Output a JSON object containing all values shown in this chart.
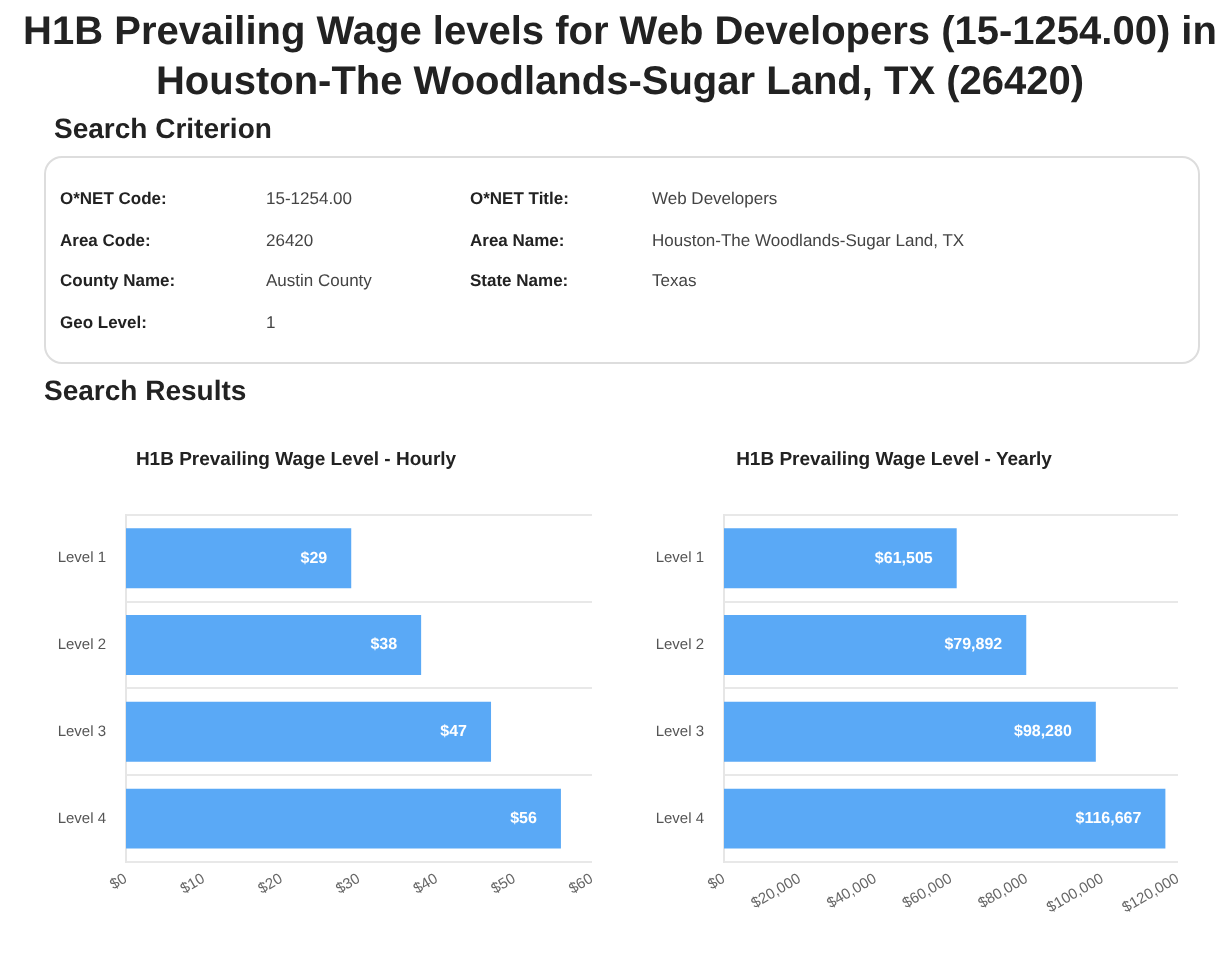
{
  "chart_data": [
    {
      "type": "other",
      "title": "H1B Prevailing Wage levels for Web Developers (15-1254.00) in Houston-The Woodlands-Sugar Land, TX (26420)",
      "subtitle": "Search Criterion",
      "annotations": [
        "O*NET Code:",
        "15-1254.00",
        "O*NET Title:",
        "Web Developers",
        "Area Code:",
        "26420",
        "Area Name:",
        "Houston-The Woodlands-Sugar Land, TX",
        "County Name:",
        "Austin County",
        "State Name:",
        "Texas",
        "Geo Level:",
        "1"
      ]
    },
    {
      "type": "other",
      "title": "Search Results"
    },
    {
      "type": "bar",
      "orientation": "horizontal",
      "title": "H1B Prevailing Wage Level - Hourly",
      "categories": [
        "Level 1",
        "Level 2",
        "Level 3",
        "Level 4"
      ],
      "values": [
        29,
        38,
        47,
        56
      ],
      "value_labels": [
        "$29",
        "$38",
        "$47",
        "$56"
      ],
      "color": "#5aa9f6",
      "xlim": [
        0,
        60
      ],
      "xticks": [
        {
          "value": 0,
          "label": "$0"
        },
        {
          "value": 10,
          "label": "$10"
        },
        {
          "value": 20,
          "label": "$20"
        },
        {
          "value": 30,
          "label": "$30"
        },
        {
          "value": 40,
          "label": "$40"
        },
        {
          "value": 50,
          "label": "$50"
        },
        {
          "value": 60,
          "label": "$60"
        }
      ],
      "grid": "y"
    },
    {
      "type": "bar",
      "orientation": "horizontal",
      "title": "H1B Prevailing Wage Level - Yearly",
      "categories": [
        "Level 1",
        "Level 2",
        "Level 3",
        "Level 4"
      ],
      "values": [
        61505,
        79892,
        98280,
        116667
      ],
      "value_labels": [
        "$61,505",
        "$79,892",
        "$98,280",
        "$116,667"
      ],
      "color": "#5aa9f6",
      "xlim": [
        0,
        120000
      ],
      "xticks": [
        {
          "value": 0,
          "label": "$0"
        },
        {
          "value": 20000,
          "label": "$20,000"
        },
        {
          "value": 40000,
          "label": "$40,000"
        },
        {
          "value": 60000,
          "label": "$60,000"
        },
        {
          "value": 80000,
          "label": "$80,000"
        },
        {
          "value": 100000,
          "label": "$100,000"
        },
        {
          "value": 120000,
          "label": "$120,000"
        }
      ],
      "grid": "y"
    }
  ]
}
